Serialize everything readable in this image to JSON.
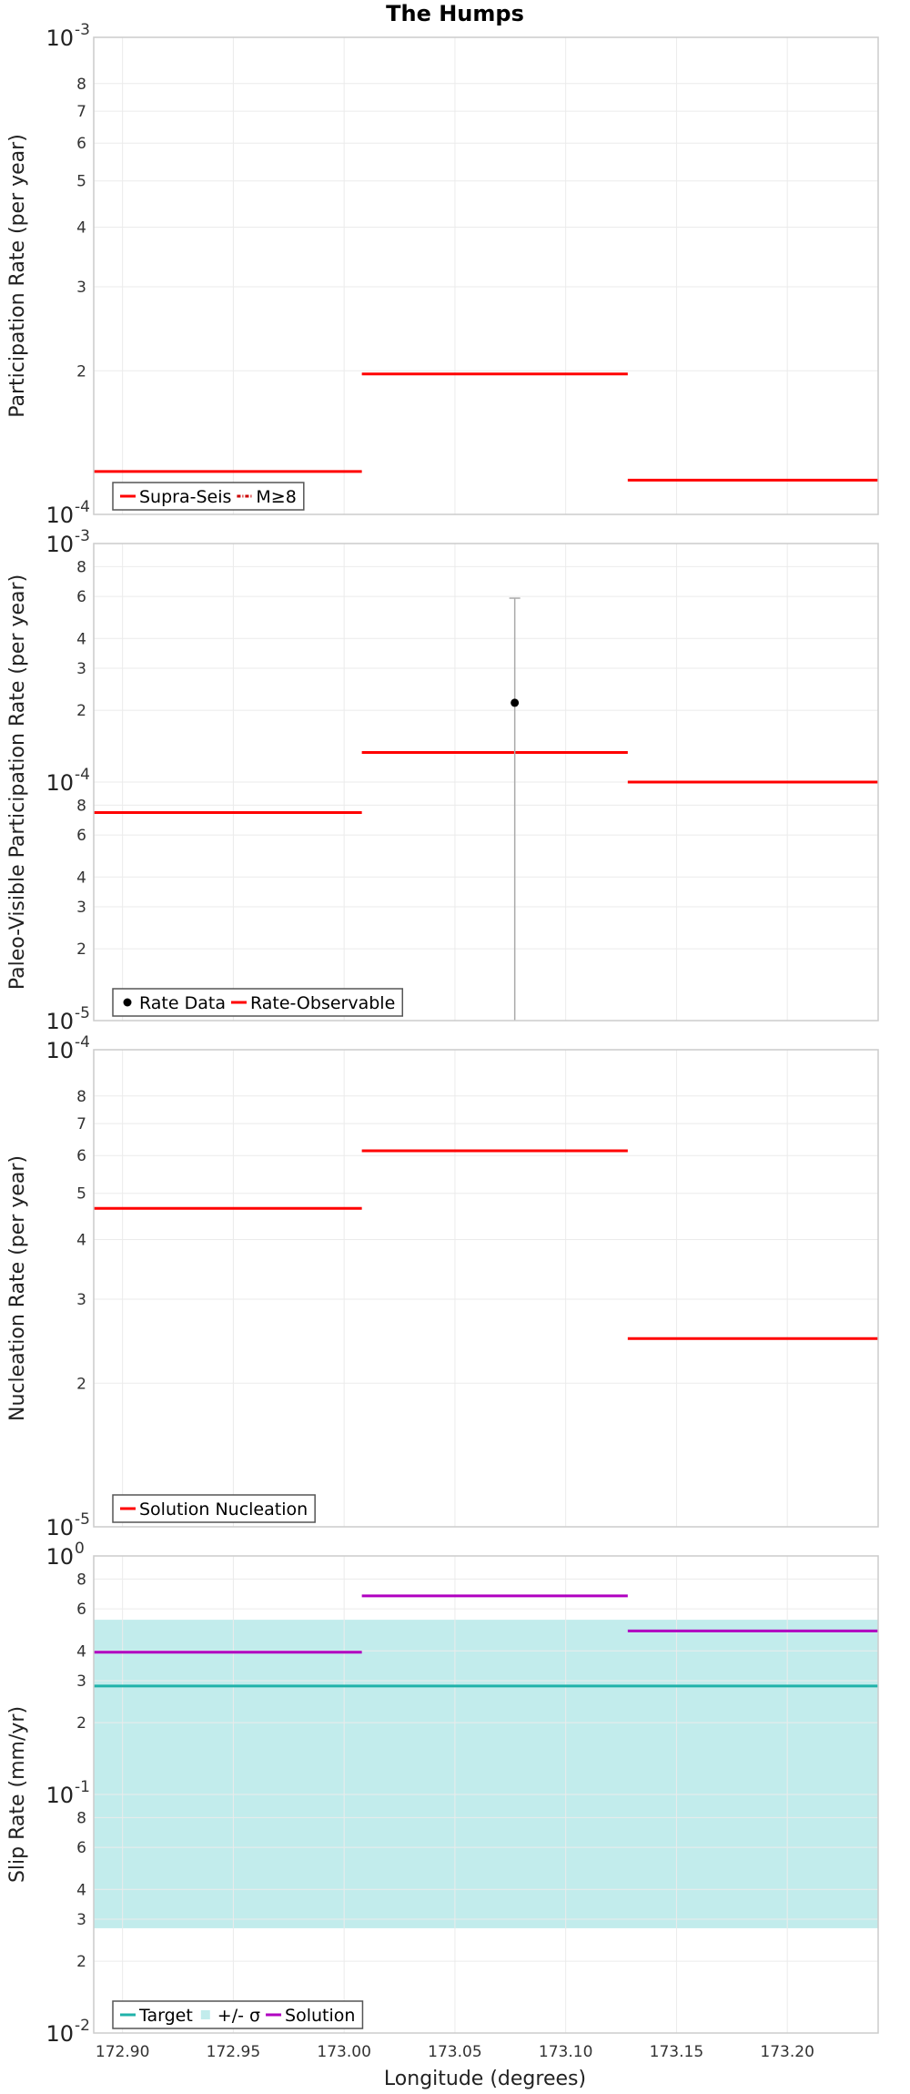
{
  "chart_data": {
    "title": "The Humps",
    "xlabel": "Longitude (degrees)",
    "xlim": [
      172.887,
      173.241
    ],
    "xticks": [
      "172.90",
      "172.95",
      "173.00",
      "173.05",
      "173.10",
      "173.15",
      "173.20"
    ],
    "xtick_values": [
      172.9,
      172.95,
      173.0,
      173.05,
      173.1,
      173.15,
      173.2
    ],
    "panels": [
      {
        "id": "participation",
        "type": "line",
        "ylabel": "Participation Rate (per year)",
        "yscale": "log",
        "ylim": [
          0.0001,
          0.001
        ],
        "major_ticks": [
          {
            "value": 0.0001,
            "base": "10",
            "exp": "-4"
          },
          {
            "value": 0.001,
            "base": "10",
            "exp": "-3"
          }
        ],
        "minor_ticks": [
          {
            "value": 0.0002,
            "label": "2"
          },
          {
            "value": 0.0003,
            "label": "3"
          },
          {
            "value": 0.0004,
            "label": "4"
          },
          {
            "value": 0.0005,
            "label": "5"
          },
          {
            "value": 0.0006,
            "label": "6"
          },
          {
            "value": 0.0007,
            "label": "7"
          },
          {
            "value": 0.0008,
            "label": "8"
          }
        ],
        "series": [
          {
            "name": "Supra-Seis",
            "color": "#ff0000",
            "style": "solid",
            "segments": [
              {
                "x0": 172.887,
                "x1": 173.008,
                "y": 0.000123
              },
              {
                "x0": 173.008,
                "x1": 173.128,
                "y": 0.000197
              },
              {
                "x0": 173.128,
                "x1": 173.241,
                "y": 0.000118
              }
            ]
          },
          {
            "name": "M≥8",
            "color": "#cc0000",
            "style": "dashdot",
            "segments": []
          }
        ],
        "legend": [
          {
            "label": "Supra-Seis",
            "kind": "line",
            "color": "#ff0000",
            "dash": ""
          },
          {
            "label": "M≥8",
            "kind": "line",
            "color": "#cc0000",
            "dash": "4,2,1,2"
          }
        ]
      },
      {
        "id": "paleo",
        "type": "line",
        "ylabel": "Paleo-Visible Participation Rate (per year)",
        "yscale": "log",
        "ylim": [
          1e-05,
          0.001
        ],
        "major_ticks": [
          {
            "value": 1e-05,
            "base": "10",
            "exp": "-5"
          },
          {
            "value": 0.0001,
            "base": "10",
            "exp": "-4"
          },
          {
            "value": 0.001,
            "base": "10",
            "exp": "-3"
          }
        ],
        "minor_ticks": [
          {
            "value": 2e-05,
            "label": "2"
          },
          {
            "value": 3e-05,
            "label": "3"
          },
          {
            "value": 4e-05,
            "label": "4"
          },
          {
            "value": 6e-05,
            "label": "6"
          },
          {
            "value": 8e-05,
            "label": "8"
          },
          {
            "value": 0.0002,
            "label": "2"
          },
          {
            "value": 0.0003,
            "label": "3"
          },
          {
            "value": 0.0004,
            "label": "4"
          },
          {
            "value": 0.0006,
            "label": "6"
          },
          {
            "value": 0.0008,
            "label": "8"
          }
        ],
        "series": [
          {
            "name": "Rate-Observable",
            "color": "#ff0000",
            "style": "solid",
            "segments": [
              {
                "x0": 172.887,
                "x1": 173.008,
                "y": 7.45e-05
              },
              {
                "x0": 173.008,
                "x1": 173.128,
                "y": 0.000133
              },
              {
                "x0": 173.128,
                "x1": 173.241,
                "y": 0.0001
              }
            ]
          }
        ],
        "points": [
          {
            "name": "Rate Data",
            "x": 173.077,
            "y": 0.000215,
            "ylo": 1e-05,
            "yhi": 0.00059,
            "color": "#000000",
            "errcolor": "#aaaaaa"
          }
        ],
        "legend": [
          {
            "label": "Rate Data",
            "kind": "dot",
            "color": "#000000",
            "dash": ""
          },
          {
            "label": "Rate-Observable",
            "kind": "line",
            "color": "#ff0000",
            "dash": ""
          }
        ]
      },
      {
        "id": "nucleation",
        "type": "line",
        "ylabel": "Nucleation Rate (per year)",
        "yscale": "log",
        "ylim": [
          1e-05,
          0.0001
        ],
        "major_ticks": [
          {
            "value": 1e-05,
            "base": "10",
            "exp": "-5"
          },
          {
            "value": 0.0001,
            "base": "10",
            "exp": "-4"
          }
        ],
        "minor_ticks": [
          {
            "value": 2e-05,
            "label": "2"
          },
          {
            "value": 3e-05,
            "label": "3"
          },
          {
            "value": 4e-05,
            "label": "4"
          },
          {
            "value": 5e-05,
            "label": "5"
          },
          {
            "value": 6e-05,
            "label": "6"
          },
          {
            "value": 7e-05,
            "label": "7"
          },
          {
            "value": 8e-05,
            "label": "8"
          }
        ],
        "series": [
          {
            "name": "Solution Nucleation",
            "color": "#ff0000",
            "style": "solid",
            "segments": [
              {
                "x0": 172.887,
                "x1": 173.008,
                "y": 4.65e-05
              },
              {
                "x0": 173.008,
                "x1": 173.128,
                "y": 6.14e-05
              },
              {
                "x0": 173.128,
                "x1": 173.241,
                "y": 2.48e-05
              }
            ]
          }
        ],
        "legend": [
          {
            "label": "Solution Nucleation",
            "kind": "line",
            "color": "#ff0000",
            "dash": ""
          }
        ]
      },
      {
        "id": "slip",
        "type": "line",
        "ylabel": "Slip Rate (mm/yr)",
        "yscale": "log",
        "ylim": [
          0.01,
          1
        ],
        "major_ticks": [
          {
            "value": 0.01,
            "base": "10",
            "exp": "-2"
          },
          {
            "value": 0.1,
            "base": "10",
            "exp": "-1"
          },
          {
            "value": 1,
            "base": "10",
            "exp": "0"
          }
        ],
        "minor_ticks": [
          {
            "value": 0.02,
            "label": "2"
          },
          {
            "value": 0.03,
            "label": "3"
          },
          {
            "value": 0.04,
            "label": "4"
          },
          {
            "value": 0.06,
            "label": "6"
          },
          {
            "value": 0.08,
            "label": "8"
          },
          {
            "value": 0.2,
            "label": "2"
          },
          {
            "value": 0.3,
            "label": "3"
          },
          {
            "value": 0.4,
            "label": "4"
          },
          {
            "value": 0.6,
            "label": "6"
          },
          {
            "value": 0.8,
            "label": "8"
          }
        ],
        "band": {
          "name": "+/- σ",
          "ylo": 0.0275,
          "yhi": 0.54,
          "color": "#c2ecec"
        },
        "series": [
          {
            "name": "Target",
            "color": "#20b2aa",
            "style": "solid",
            "segments": [
              {
                "x0": 172.887,
                "x1": 173.241,
                "y": 0.285
              }
            ]
          },
          {
            "name": "Solution",
            "color": "#b000c0",
            "style": "solid",
            "segments": [
              {
                "x0": 172.887,
                "x1": 173.008,
                "y": 0.395
              },
              {
                "x0": 173.008,
                "x1": 173.128,
                "y": 0.68
              },
              {
                "x0": 173.128,
                "x1": 173.241,
                "y": 0.485
              }
            ]
          }
        ],
        "legend": [
          {
            "label": "Target",
            "kind": "line",
            "color": "#20b2aa",
            "dash": ""
          },
          {
            "label": "+/- σ",
            "kind": "box",
            "color": "#c2ecec",
            "dash": ""
          },
          {
            "label": "Solution",
            "kind": "line",
            "color": "#b000c0",
            "dash": ""
          }
        ]
      }
    ]
  }
}
